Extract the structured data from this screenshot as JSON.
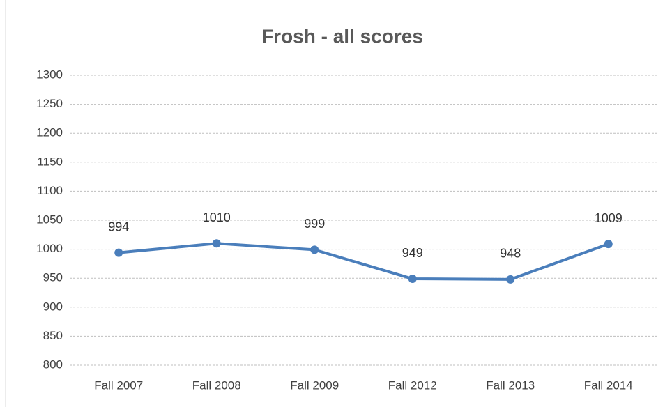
{
  "chart_data": {
    "type": "line",
    "title": "Frosh - all scores",
    "categories": [
      "Fall 2007",
      "Fall 2008",
      "Fall 2009",
      "Fall 2012",
      "Fall 2013",
      "Fall 2014"
    ],
    "series": [
      {
        "name": "Frosh",
        "color": "#4a7ebb",
        "values": [
          994,
          1010,
          999,
          949,
          948,
          1009
        ]
      }
    ],
    "ylim": [
      800,
      1300
    ],
    "yticks": [
      800,
      850,
      900,
      950,
      1000,
      1050,
      1100,
      1150,
      1200,
      1250,
      1300
    ],
    "grid": true,
    "legend": false
  }
}
